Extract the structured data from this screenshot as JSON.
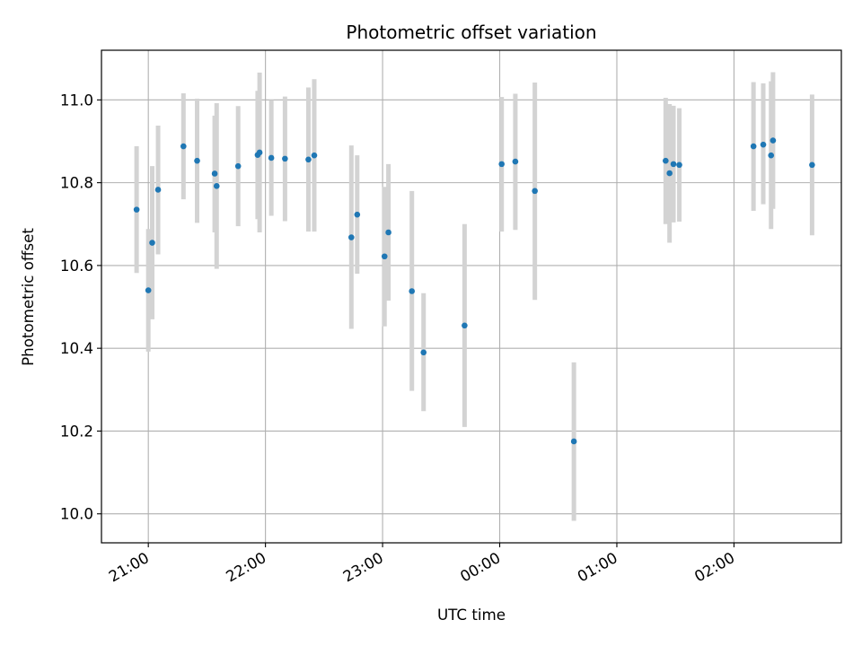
{
  "chart_data": {
    "type": "scatter",
    "title": "Photometric offset variation",
    "xlabel": "UTC time",
    "ylabel": "Photometric offset",
    "x_ticks": [
      "21:00",
      "22:00",
      "23:00",
      "00:00",
      "01:00",
      "02:00"
    ],
    "x_tick_times": [
      "2024-01-01T21:00",
      "2024-01-01T22:00",
      "2024-01-01T23:00",
      "2024-01-02T00:00",
      "2024-01-02T01:00",
      "2024-01-02T02:00"
    ],
    "y_ticks": [
      "10.0",
      "10.2",
      "10.4",
      "10.6",
      "10.8",
      "11.0"
    ],
    "xlim": [
      "20:36",
      "02:55"
    ],
    "ylim": [
      9.93,
      11.12
    ],
    "grid": true,
    "marker_color": "#1f77b4",
    "errorbar_color": "#d3d3d3",
    "points": [
      {
        "t": "20:54",
        "y": 10.735,
        "lo": 10.582,
        "hi": 10.888
      },
      {
        "t": "21:00",
        "y": 10.54,
        "lo": 10.392,
        "hi": 10.688
      },
      {
        "t": "21:02",
        "y": 10.655,
        "lo": 10.47,
        "hi": 10.84
      },
      {
        "t": "21:05",
        "y": 10.783,
        "lo": 10.627,
        "hi": 10.938
      },
      {
        "t": "21:18",
        "y": 10.888,
        "lo": 10.76,
        "hi": 11.016
      },
      {
        "t": "21:25",
        "y": 10.853,
        "lo": 10.703,
        "hi": 11.003
      },
      {
        "t": "21:34",
        "y": 10.822,
        "lo": 10.68,
        "hi": 10.962
      },
      {
        "t": "21:35",
        "y": 10.792,
        "lo": 10.592,
        "hi": 10.992
      },
      {
        "t": "21:46",
        "y": 10.84,
        "lo": 10.695,
        "hi": 10.985
      },
      {
        "t": "21:56",
        "y": 10.867,
        "lo": 10.712,
        "hi": 11.022
      },
      {
        "t": "21:57",
        "y": 10.873,
        "lo": 10.68,
        "hi": 11.066
      },
      {
        "t": "22:03",
        "y": 10.86,
        "lo": 10.72,
        "hi": 11.0
      },
      {
        "t": "22:10",
        "y": 10.858,
        "lo": 10.707,
        "hi": 11.008
      },
      {
        "t": "22:22",
        "y": 10.856,
        "lo": 10.682,
        "hi": 11.03
      },
      {
        "t": "22:25",
        "y": 10.866,
        "lo": 10.682,
        "hi": 11.05
      },
      {
        "t": "22:44",
        "y": 10.668,
        "lo": 10.447,
        "hi": 10.89
      },
      {
        "t": "22:47",
        "y": 10.723,
        "lo": 10.58,
        "hi": 10.866
      },
      {
        "t": "23:01",
        "y": 10.622,
        "lo": 10.453,
        "hi": 10.79
      },
      {
        "t": "23:03",
        "y": 10.68,
        "lo": 10.515,
        "hi": 10.845
      },
      {
        "t": "23:15",
        "y": 10.538,
        "lo": 10.297,
        "hi": 10.78
      },
      {
        "t": "23:21",
        "y": 10.39,
        "lo": 10.248,
        "hi": 10.533
      },
      {
        "t": "23:42",
        "y": 10.455,
        "lo": 10.21,
        "hi": 10.7
      },
      {
        "t": "00:01",
        "y": 10.845,
        "lo": 10.682,
        "hi": 11.007
      },
      {
        "t": "00:08",
        "y": 10.851,
        "lo": 10.686,
        "hi": 11.015
      },
      {
        "t": "00:18",
        "y": 10.78,
        "lo": 10.517,
        "hi": 11.042
      },
      {
        "t": "00:38",
        "y": 10.175,
        "lo": 9.983,
        "hi": 10.366
      },
      {
        "t": "01:25",
        "y": 10.853,
        "lo": 10.7,
        "hi": 11.005
      },
      {
        "t": "01:27",
        "y": 10.823,
        "lo": 10.655,
        "hi": 10.99
      },
      {
        "t": "01:29",
        "y": 10.845,
        "lo": 10.704,
        "hi": 10.986
      },
      {
        "t": "01:32",
        "y": 10.843,
        "lo": 10.706,
        "hi": 10.98
      },
      {
        "t": "02:10",
        "y": 10.888,
        "lo": 10.732,
        "hi": 11.043
      },
      {
        "t": "02:15",
        "y": 10.892,
        "lo": 10.748,
        "hi": 11.04
      },
      {
        "t": "02:19",
        "y": 10.866,
        "lo": 10.688,
        "hi": 11.045
      },
      {
        "t": "02:20",
        "y": 10.902,
        "lo": 10.737,
        "hi": 11.067
      },
      {
        "t": "02:40",
        "y": 10.843,
        "lo": 10.673,
        "hi": 11.013
      }
    ]
  }
}
